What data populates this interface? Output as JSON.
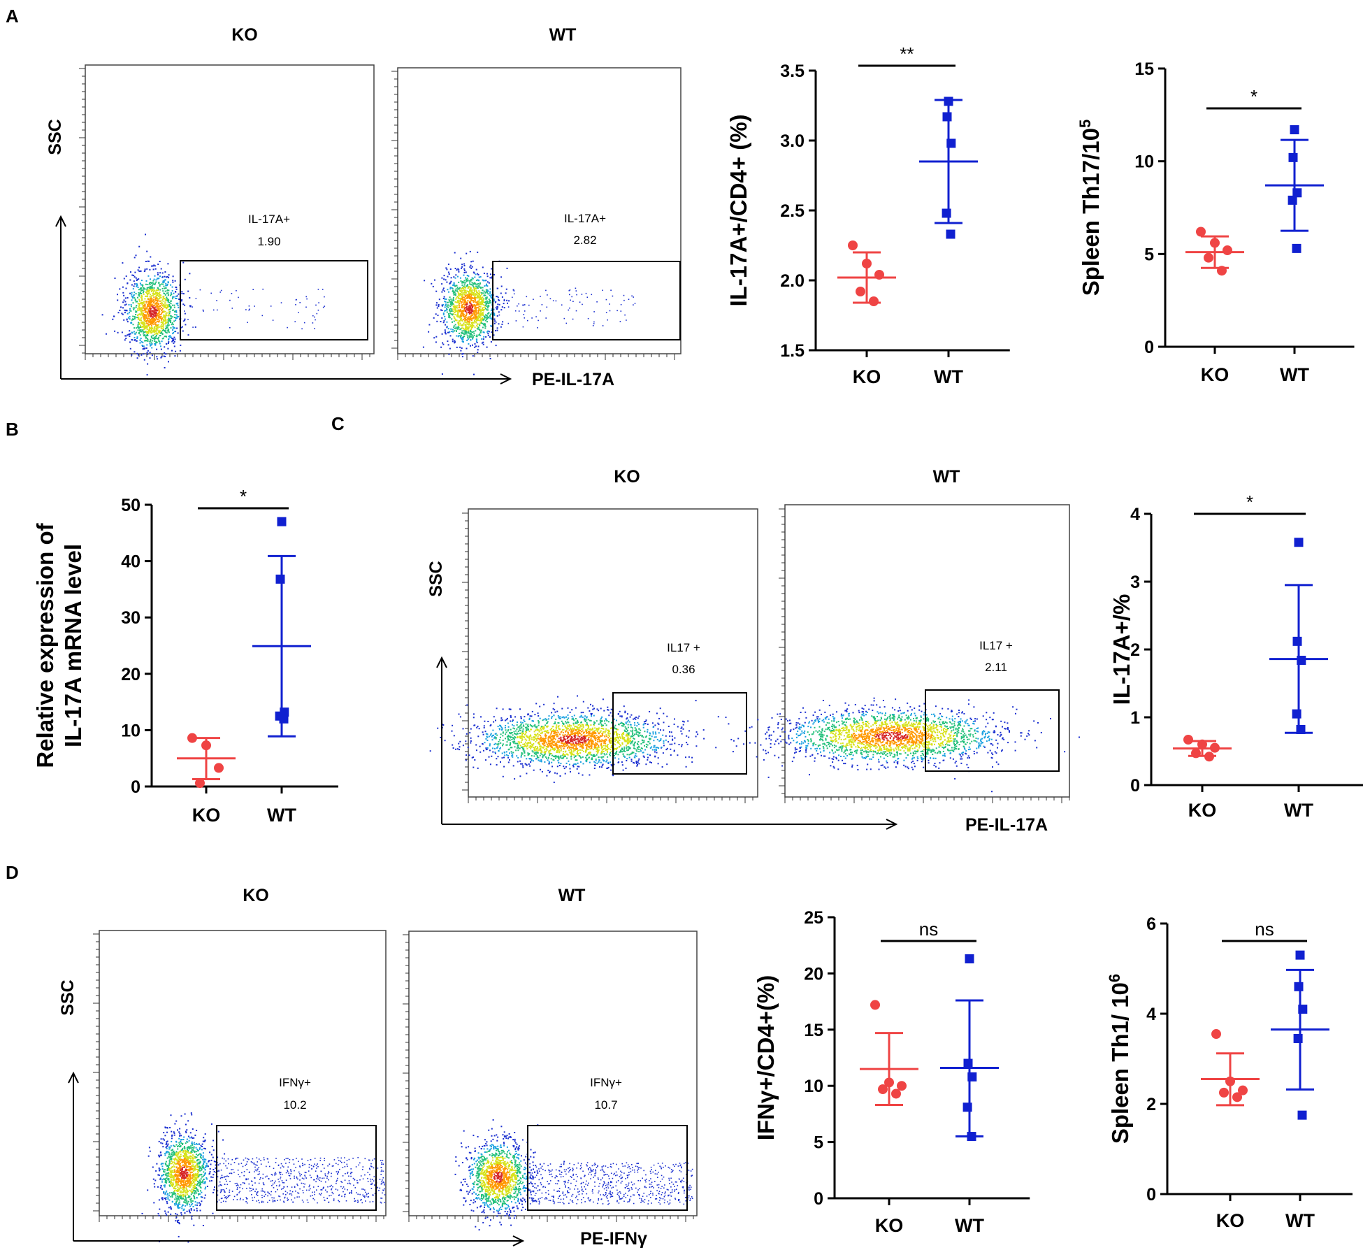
{
  "colors": {
    "ko": "#ef4444",
    "wt": "#1020d0",
    "axis": "#000000"
  },
  "panels": {
    "A": {
      "label": "A",
      "flow": {
        "ko_title": "KO",
        "wt_title": "WT",
        "y_axis_label": "SSC",
        "x_axis_label": "PE-IL-17A",
        "ko_gate_name": "IL-17A+",
        "ko_gate_value": "1.90",
        "wt_gate_name": "IL-17A+",
        "wt_gate_value": "2.82"
      }
    },
    "B": {
      "label": "B"
    },
    "C": {
      "label": "C",
      "flow": {
        "ko_title": "KO",
        "wt_title": "WT",
        "y_axis_label": "SSC",
        "x_axis_label": "PE-IL-17A",
        "ko_gate_name": "IL17 +",
        "ko_gate_value": "0.36",
        "wt_gate_name": "IL17 +",
        "wt_gate_value": "2.11"
      }
    },
    "D": {
      "label": "D",
      "flow": {
        "ko_title": "KO",
        "wt_title": "WT",
        "y_axis_label": "SSC",
        "x_axis_label": "PE-IFNγ",
        "ko_gate_name": "IFNγ+",
        "ko_gate_value": "10.2",
        "wt_gate_name": "IFNγ+",
        "wt_gate_value": "10.7"
      }
    }
  },
  "chart_data": [
    {
      "id": "A1",
      "panel": "A",
      "type": "scatter",
      "ylabel": "IL-17A+/CD4+ (%)",
      "ylim": [
        1.5,
        3.5
      ],
      "yticks": [
        "1.5",
        "2.0",
        "2.5",
        "3.0",
        "3.5"
      ],
      "categories": [
        "KO",
        "WT"
      ],
      "significance": "**",
      "series": [
        {
          "name": "KO",
          "marker": "circle",
          "points": [
            2.25,
            2.12,
            2.04,
            1.92,
            1.85
          ],
          "mean": 2.02,
          "sd_low": 1.84,
          "sd_high": 2.2
        },
        {
          "name": "WT",
          "marker": "square",
          "points": [
            3.28,
            3.17,
            2.98,
            2.48,
            2.33
          ],
          "mean": 2.85,
          "sd_low": 2.41,
          "sd_high": 3.29
        }
      ]
    },
    {
      "id": "A2",
      "panel": "A",
      "type": "scatter",
      "ylabel": "Spleen Th17/10",
      "ylabel_sup": "5",
      "ylim": [
        0,
        15
      ],
      "yticks": [
        "0",
        "5",
        "10",
        "15"
      ],
      "categories": [
        "KO",
        "WT"
      ],
      "significance": "*",
      "series": [
        {
          "name": "KO",
          "marker": "circle",
          "points": [
            6.2,
            5.6,
            5.2,
            4.8,
            4.1
          ],
          "mean": 5.1,
          "sd_low": 4.25,
          "sd_high": 5.95
        },
        {
          "name": "WT",
          "marker": "square",
          "points": [
            11.7,
            10.2,
            8.3,
            7.9,
            5.3
          ],
          "mean": 8.7,
          "sd_low": 6.25,
          "sd_high": 11.15
        }
      ]
    },
    {
      "id": "B",
      "panel": "B",
      "type": "scatter",
      "ylabel_line1": "Relative expression of",
      "ylabel_line2": "IL-17A mRNA level",
      "ylim": [
        0,
        50
      ],
      "yticks": [
        "0",
        "10",
        "20",
        "30",
        "40",
        "50"
      ],
      "categories": [
        "KO",
        "WT"
      ],
      "significance": "*",
      "series": [
        {
          "name": "KO",
          "marker": "circle",
          "points": [
            8.6,
            7.3,
            3.3,
            0.6
          ],
          "mean": 5.0,
          "sd_low": 1.3,
          "sd_high": 8.6
        },
        {
          "name": "WT",
          "marker": "square",
          "points": [
            47.0,
            36.8,
            13.2,
            12.5,
            12.0
          ],
          "mean": 24.9,
          "sd_low": 8.9,
          "sd_high": 40.9
        }
      ]
    },
    {
      "id": "C",
      "panel": "C",
      "type": "scatter",
      "ylabel": "IL-17A+/%",
      "ylim": [
        0,
        4
      ],
      "yticks": [
        "0",
        "1",
        "2",
        "3",
        "4"
      ],
      "categories": [
        "KO",
        "WT"
      ],
      "significance": "*",
      "series": [
        {
          "name": "KO",
          "marker": "circle",
          "points": [
            0.67,
            0.6,
            0.55,
            0.47,
            0.42
          ],
          "mean": 0.54,
          "sd_low": 0.43,
          "sd_high": 0.65
        },
        {
          "name": "WT",
          "marker": "square",
          "points": [
            3.58,
            2.12,
            1.84,
            1.05,
            0.82
          ],
          "mean": 1.86,
          "sd_low": 0.77,
          "sd_high": 2.95
        }
      ]
    },
    {
      "id": "D1",
      "panel": "D",
      "type": "scatter",
      "ylabel": "IFNγ+/CD4+(%)",
      "ylim": [
        0,
        25
      ],
      "yticks": [
        "0",
        "5",
        "10",
        "15",
        "20",
        "25"
      ],
      "categories": [
        "KO",
        "WT"
      ],
      "significance": "ns",
      "series": [
        {
          "name": "KO",
          "marker": "circle",
          "points": [
            17.2,
            10.3,
            10.0,
            9.7,
            9.3
          ],
          "mean": 11.5,
          "sd_low": 8.3,
          "sd_high": 14.7
        },
        {
          "name": "WT",
          "marker": "square",
          "points": [
            21.3,
            12.0,
            10.8,
            8.1,
            5.5
          ],
          "mean": 11.6,
          "sd_low": 5.5,
          "sd_high": 17.6
        }
      ]
    },
    {
      "id": "D2",
      "panel": "D",
      "type": "scatter",
      "ylabel": "Spleen Th1/ 10",
      "ylabel_sup": "6",
      "ylim": [
        0,
        6
      ],
      "yticks": [
        "0",
        "2",
        "4",
        "6"
      ],
      "categories": [
        "KO",
        "WT"
      ],
      "significance": "ns",
      "series": [
        {
          "name": "KO",
          "marker": "circle",
          "points": [
            3.55,
            2.5,
            2.3,
            2.25,
            2.15
          ],
          "mean": 2.55,
          "sd_low": 1.97,
          "sd_high": 3.12
        },
        {
          "name": "WT",
          "marker": "square",
          "points": [
            5.3,
            4.6,
            4.1,
            3.45,
            1.75
          ],
          "mean": 3.65,
          "sd_low": 2.32,
          "sd_high": 4.97
        }
      ]
    }
  ]
}
